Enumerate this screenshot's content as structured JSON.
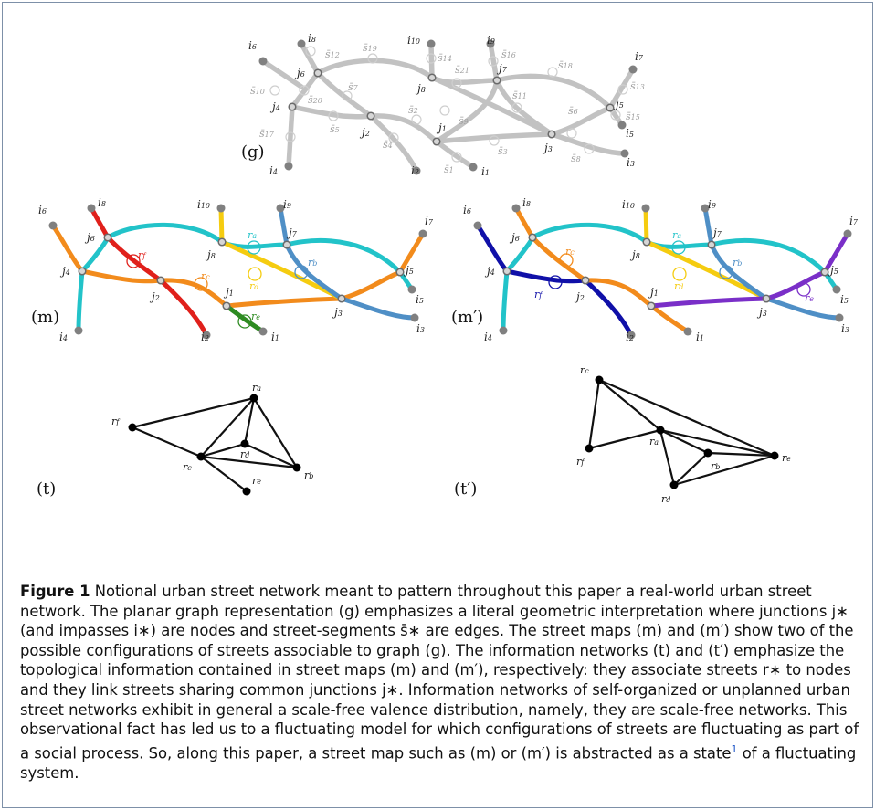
{
  "caption": {
    "figure_label": "Figure 1",
    "text": "Notional urban street network meant to pattern throughout this paper a real-world urban street network. The planar graph representation (g) emphasizes a literal geometric interpretation where junctions j∗ (and impasses i∗) are nodes and street-segments s̄∗ are edges. The street maps (m) and (m′) show two of the possible configurations of streets associable to graph (g). The information networks (t) and (t′) emphasize the topological information contained in street maps (m) and (m′), respectively: they associate streets r∗ to nodes and they link streets sharing common junctions j∗. Information networks of self-organized or unplanned urban street networks exhibit in general a scale-free valence distribution, namely, they are scale-free networks. This observational fact has led us to a fluctuating model for which configurations of streets are fluctuating as part of a social process. So, along this paper, a street map such as (m) or (m′) is abstracted as a state",
    "footnote_mark": "1",
    "text_end": " of a fluctuating system."
  },
  "panels": {
    "g": "(g)",
    "m": "(m)",
    "m_prime": "(m′)",
    "t": "(t)",
    "t_prime": "(t′)"
  },
  "graph_labels": {
    "impasses": [
      "i1",
      "i2",
      "i3",
      "i4",
      "i5",
      "i6",
      "i7",
      "i8",
      "i9",
      "i10"
    ],
    "junctions": [
      "j1",
      "j2",
      "j3",
      "j4",
      "j5",
      "j6",
      "j7",
      "j8"
    ],
    "segments": [
      "s̄1",
      "s̄2",
      "s̄3",
      "s̄4",
      "s̄5",
      "s̄6",
      "s̄7",
      "s̄8",
      "s̄9",
      "s̄10",
      "s̄11",
      "s̄12",
      "s̄13",
      "s̄14",
      "s̄15",
      "s̄16",
      "s̄17",
      "s̄18",
      "s̄19",
      "s̄20",
      "s̄21"
    ]
  },
  "streets": [
    "ra",
    "rb",
    "rc",
    "rd",
    "re",
    "rf"
  ],
  "colors": {
    "graph_edge": "#bdbdbd",
    "node_fill": "#808080",
    "red": "#e0201b",
    "orange": "#f28b1c",
    "cyan": "#22c3c9",
    "yellow": "#f5cc10",
    "steelblue": "#4f8fc6",
    "green": "#2e8b22",
    "darkblue": "#1010a8",
    "purple": "#7a2fc8"
  }
}
